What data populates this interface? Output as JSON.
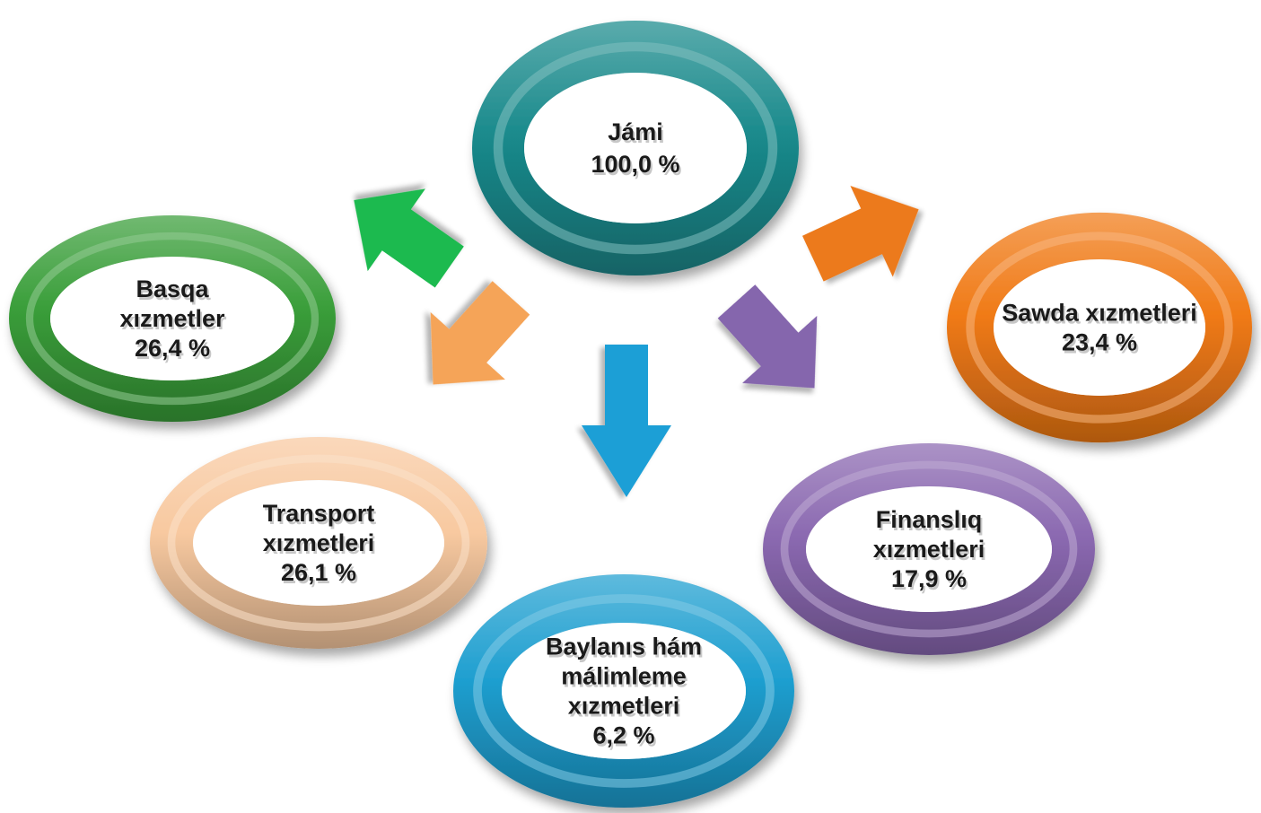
{
  "nodes": {
    "total": {
      "lines": [
        "Jámi",
        "100,0 %"
      ],
      "color": "#1a8a8c"
    },
    "other": {
      "lines": [
        "Basqa",
        "xızmetler",
        "26,4 %"
      ],
      "color": "#3a9e3a"
    },
    "trade": {
      "lines": [
        "Sawda xızmetleri",
        "23,4 %"
      ],
      "color": "#f07a16"
    },
    "transport": {
      "lines": [
        "Transport",
        "xızmetleri",
        "26,1 %"
      ],
      "color": "#f8c9a0"
    },
    "financial": {
      "lines": [
        "Finanslıq",
        "xızmetleri",
        "17,9 %"
      ],
      "color": "#8a68b0"
    },
    "communication": {
      "lines": [
        "Baylanıs hám",
        "málimleme",
        "xızmetleri",
        "6,2 %"
      ],
      "color": "#1f9fd0"
    }
  },
  "arrows": {
    "to_other": {
      "color": "#1fba4f"
    },
    "to_trade": {
      "color": "#ec7a1e"
    },
    "to_transport": {
      "color": "#f5a458"
    },
    "to_financial": {
      "color": "#8566ad"
    },
    "to_communication": {
      "color": "#1b9fd6"
    }
  }
}
